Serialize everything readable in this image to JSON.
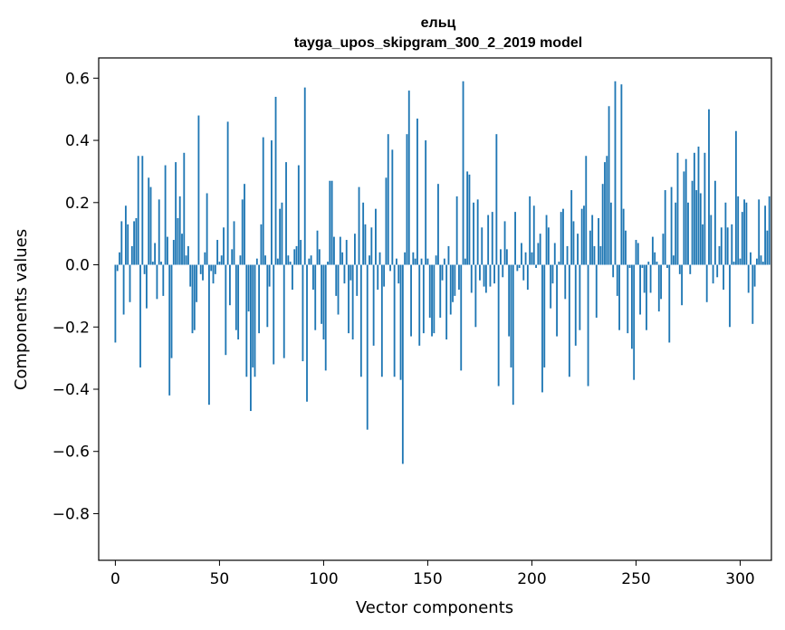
{
  "chart_data": {
    "type": "bar",
    "title": "ельц",
    "subtitle": "tayga_upos_skipgram_300_2_2019 model",
    "xlabel": "Vector components",
    "ylabel": "Components values",
    "xlim": [
      -8,
      315
    ],
    "ylim": [
      -0.95,
      0.665
    ],
    "xticks": [
      0,
      50,
      100,
      150,
      200,
      250,
      300
    ],
    "xtick_labels": [
      "0",
      "50",
      "100",
      "150",
      "200",
      "250",
      "300"
    ],
    "yticks": [
      -0.8,
      -0.6,
      -0.4,
      -0.2,
      0.0,
      0.2,
      0.4,
      0.6
    ],
    "ytick_labels": [
      "−0.8",
      "−0.6",
      "−0.4",
      "−0.2",
      "0.0",
      "0.2",
      "0.4",
      "0.6"
    ],
    "grid": false,
    "bar_color": "#1f77b4",
    "values": [
      -0.25,
      -0.02,
      0.04,
      0.14,
      -0.16,
      0.19,
      0.13,
      -0.12,
      0.06,
      0.14,
      0.15,
      0.35,
      -0.33,
      0.35,
      -0.03,
      -0.14,
      0.28,
      0.25,
      0.01,
      0.07,
      -0.11,
      0.21,
      0.01,
      -0.1,
      0.32,
      0.09,
      -0.42,
      -0.3,
      0.08,
      0.33,
      0.15,
      0.22,
      0.1,
      0.36,
      0.03,
      0.06,
      -0.07,
      -0.22,
      -0.21,
      -0.12,
      0.48,
      -0.03,
      -0.05,
      0.04,
      0.23,
      -0.45,
      -0.02,
      -0.06,
      -0.03,
      0.08,
      0.01,
      0.03,
      0.12,
      -0.29,
      0.46,
      -0.13,
      0.05,
      0.14,
      -0.21,
      -0.24,
      0.03,
      0.21,
      0.26,
      -0.36,
      -0.15,
      -0.47,
      -0.33,
      -0.36,
      0.02,
      -0.22,
      0.13,
      0.41,
      0.03,
      -0.2,
      -0.07,
      0.4,
      -0.32,
      0.54,
      0.02,
      0.18,
      0.2,
      -0.3,
      0.33,
      0.03,
      0.01,
      -0.08,
      0.05,
      0.06,
      0.32,
      0.08,
      -0.31,
      0.57,
      -0.44,
      0.02,
      0.03,
      -0.08,
      -0.21,
      0.11,
      0.05,
      -0.19,
      -0.24,
      -0.34,
      0.01,
      0.27,
      0.27,
      0.09,
      -0.1,
      -0.16,
      0.09,
      0.04,
      -0.06,
      0.08,
      -0.22,
      -0.05,
      -0.24,
      0.1,
      -0.1,
      0.25,
      -0.36,
      0.2,
      0.13,
      -0.53,
      0.03,
      0.12,
      -0.26,
      0.18,
      -0.08,
      0.04,
      -0.36,
      -0.07,
      0.28,
      0.42,
      -0.02,
      0.37,
      -0.36,
      0.02,
      -0.06,
      -0.37,
      -0.64,
      0.04,
      0.42,
      0.56,
      -0.23,
      0.04,
      0.02,
      0.47,
      -0.26,
      0.02,
      -0.22,
      0.4,
      0.02,
      -0.17,
      -0.23,
      -0.22,
      0.03,
      0.26,
      -0.17,
      -0.05,
      0.02,
      -0.24,
      0.06,
      -0.16,
      -0.12,
      -0.1,
      0.22,
      -0.08,
      -0.34,
      0.59,
      0.02,
      0.3,
      0.29,
      -0.09,
      0.2,
      -0.2,
      0.21,
      -0.05,
      0.12,
      -0.07,
      -0.09,
      0.16,
      -0.07,
      0.17,
      -0.06,
      0.42,
      -0.39,
      0.05,
      -0.04,
      0.14,
      0.05,
      -0.23,
      -0.33,
      -0.45,
      0.17,
      -0.02,
      -0.01,
      0.07,
      -0.05,
      0.04,
      -0.08,
      0.22,
      0.04,
      0.19,
      -0.01,
      0.07,
      0.1,
      -0.41,
      -0.33,
      0.16,
      0.12,
      -0.14,
      -0.06,
      0.07,
      -0.23,
      0.01,
      0.17,
      0.18,
      -0.11,
      0.06,
      -0.36,
      0.24,
      0.14,
      -0.26,
      0.1,
      -0.21,
      0.18,
      0.19,
      0.35,
      -0.39,
      0.11,
      0.16,
      0.06,
      -0.17,
      0.15,
      0.06,
      0.26,
      0.33,
      0.35,
      0.51,
      0.2,
      -0.04,
      0.59,
      -0.1,
      -0.21,
      0.58,
      0.18,
      0.11,
      -0.22,
      -0.01,
      -0.27,
      -0.37,
      0.08,
      0.07,
      -0.16,
      -0.01,
      -0.09,
      -0.21,
      0.01,
      -0.09,
      0.09,
      0.04,
      0.01,
      -0.15,
      -0.11,
      0.1,
      0.24,
      -0.01,
      -0.25,
      0.25,
      0.03,
      0.2,
      0.36,
      -0.03,
      -0.13,
      0.3,
      0.34,
      0.2,
      -0.03,
      0.27,
      0.36,
      0.24,
      0.38,
      0.23,
      0.13,
      0.36,
      -0.12,
      0.5,
      0.16,
      -0.06,
      0.27,
      -0.04,
      0.06,
      0.12,
      -0.08,
      0.2,
      0.12,
      -0.2,
      0.13,
      0.01,
      0.43,
      0.22,
      0.02,
      0.17,
      0.21,
      0.2,
      -0.09,
      0.04,
      -0.19,
      -0.07,
      0.02,
      0.21,
      0.03,
      0.01,
      0.19,
      0.11,
      0.22
    ]
  }
}
